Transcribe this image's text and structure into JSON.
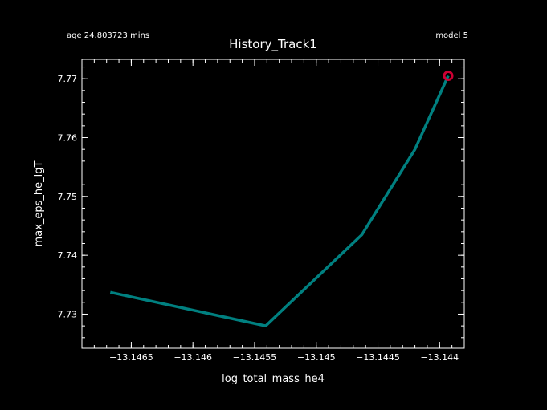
{
  "header": {
    "title": "History_Track1",
    "age_text": "age 24.803723 mins",
    "model_text": "model 5"
  },
  "chart_data": {
    "type": "line",
    "title": "History_Track1",
    "xlabel": "log_total_mass_he4",
    "ylabel": "max_eps_he_lgT",
    "xlim": [
      -13.1469,
      -13.1438
    ],
    "ylim": [
      7.7242,
      7.7733
    ],
    "x_ticks": [
      -13.1465,
      -13.146,
      -13.1455,
      -13.145,
      -13.1445,
      -13.144
    ],
    "x_tick_labels": [
      "−13.1465",
      "−13.146",
      "−13.1455",
      "−13.145",
      "−13.1445",
      "−13.144"
    ],
    "y_ticks": [
      7.73,
      7.74,
      7.75,
      7.76,
      7.77
    ],
    "y_tick_labels": [
      "7.73",
      "7.74",
      "7.75",
      "7.76",
      "7.77"
    ],
    "grid": false,
    "series": [
      {
        "x": [
          -13.14667,
          -13.14541,
          -13.14463,
          -13.1442,
          -13.14393
        ],
        "y": [
          7.7337,
          7.728,
          7.7435,
          7.758,
          7.7705
        ],
        "color": "#008080"
      }
    ],
    "marker": {
      "x": -13.14393,
      "y": 7.7705,
      "color": "#cc0033"
    }
  }
}
